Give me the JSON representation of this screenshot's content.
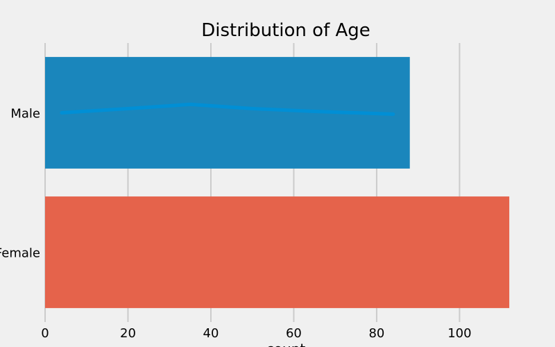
{
  "chart_data": {
    "type": "bar",
    "orientation": "horizontal",
    "title": "Distribution of Age",
    "xlabel": "count",
    "ylabel": "",
    "categories": [
      "Male",
      "Female"
    ],
    "values": [
      88,
      112
    ],
    "colors": [
      "#1a86bc",
      "#e5634b"
    ],
    "xlim": [
      0,
      116
    ],
    "xticks": [
      0,
      20,
      40,
      60,
      80,
      100
    ],
    "grid": true,
    "background": "#f0f0f0",
    "overlay_line": {
      "color": "#008fd5",
      "x": [
        4,
        20,
        35,
        50,
        65,
        84
      ],
      "y_offset": [
        0.0,
        -0.03,
        -0.06,
        -0.03,
        -0.01,
        0.01
      ]
    }
  }
}
